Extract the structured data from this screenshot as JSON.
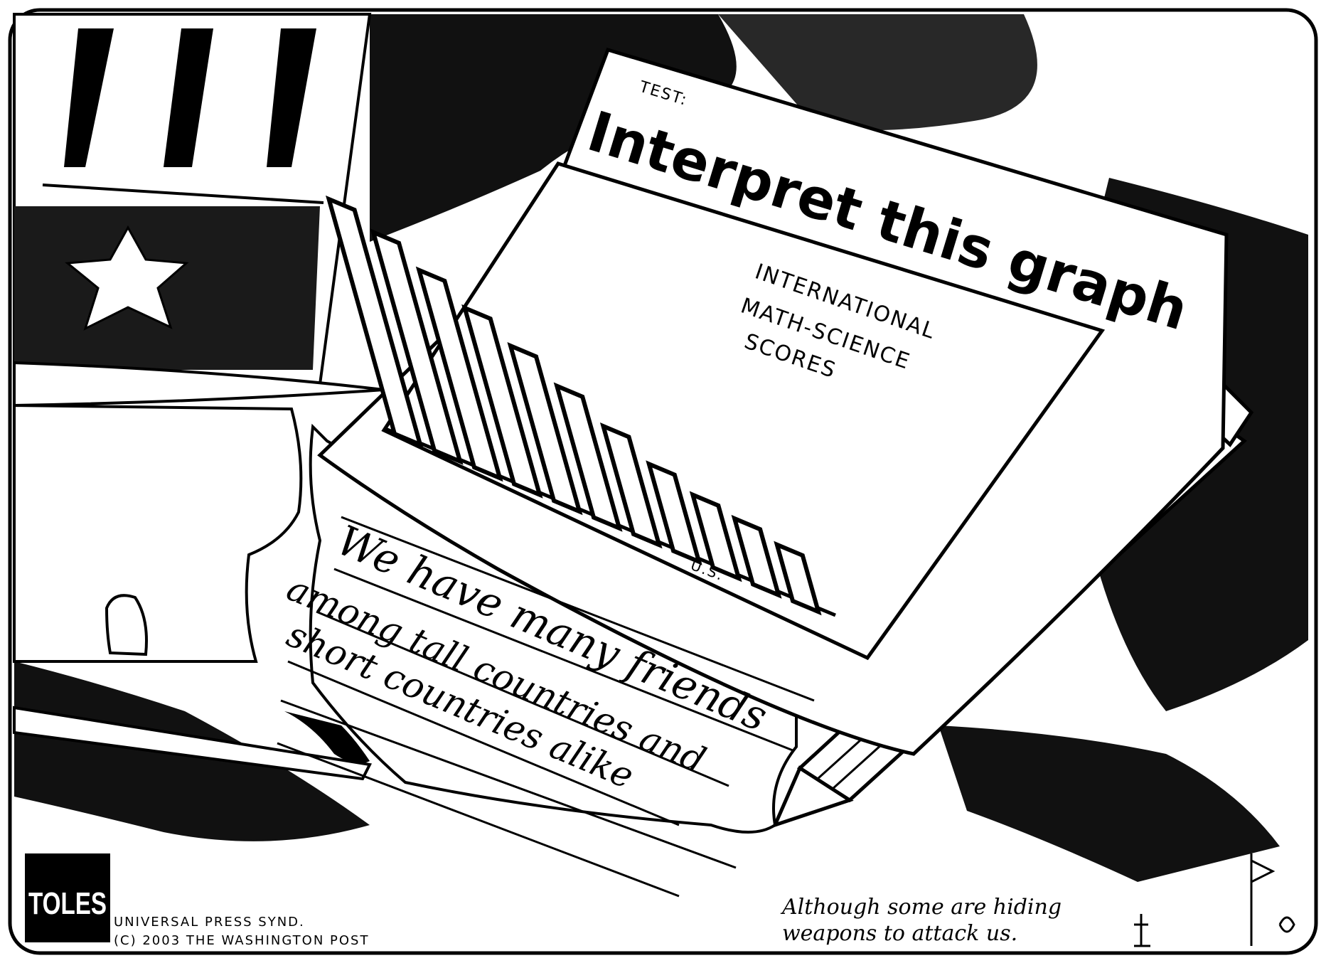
{
  "test_header": {
    "label": "TEST:",
    "title": "Interpret this graph"
  },
  "graph": {
    "title_lines": [
      "INTERNATIONAL",
      "MATH-SCIENCE",
      "SCORES"
    ],
    "us_label": "U.S.",
    "bar_levels": [
      1.0,
      0.93,
      0.84,
      0.75,
      0.66,
      0.56,
      0.46,
      0.37,
      0.31,
      0.28,
      0.24
    ]
  },
  "answer_lines": [
    "We have many friends",
    "among tall countries and",
    "short countries alike"
  ],
  "footnote_lines": [
    "Although some are hiding",
    "weapons to attack us."
  ],
  "signature": {
    "logo_text": "TOLES",
    "credit_lines": [
      "UNIVERSAL PRESS SYND.",
      "(C) 2003 THE WASHINGTON POST"
    ]
  }
}
